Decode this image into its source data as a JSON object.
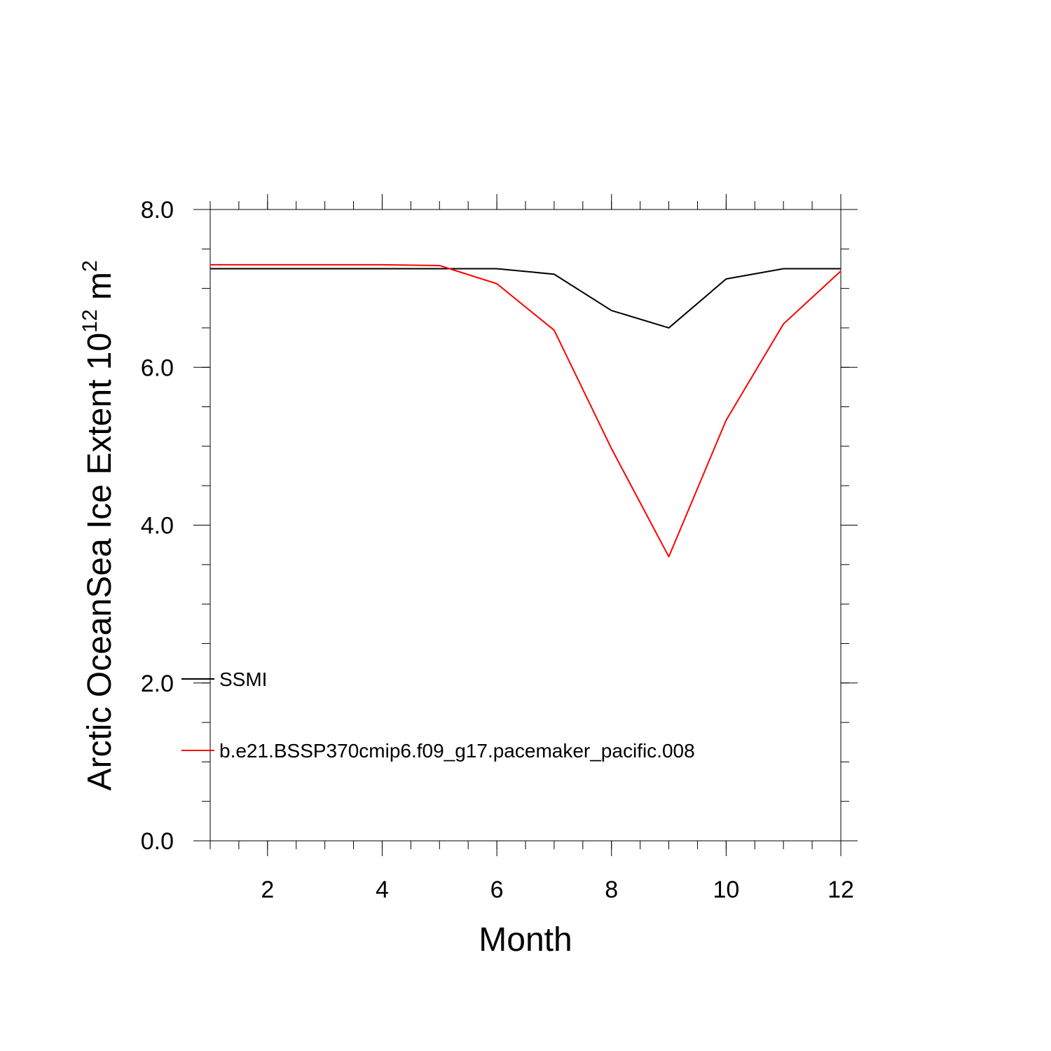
{
  "chart_data": {
    "type": "line",
    "title": "",
    "xlabel": "Month",
    "ylabel_main": "Arctic OceanSea Ice Extent 10",
    "ylabel_sup1": "12",
    "ylabel_mid": " m",
    "ylabel_sup2": "2",
    "xlim": [
      1,
      12
    ],
    "ylim": [
      0,
      8
    ],
    "x_ticks": [
      2,
      4,
      6,
      8,
      10,
      12
    ],
    "x_tick_labels": [
      "2",
      "4",
      "6",
      "8",
      "10",
      "12"
    ],
    "y_ticks": [
      0,
      2,
      4,
      6,
      8
    ],
    "y_tick_labels": [
      "0.0",
      "2.0",
      "4.0",
      "6.0",
      "8.0"
    ],
    "grid": false,
    "legend_position": "lower-left",
    "x": [
      1,
      2,
      3,
      4,
      5,
      6,
      7,
      8,
      9,
      10,
      11,
      12
    ],
    "series": [
      {
        "name": "SSMI",
        "color": "#000000",
        "values": [
          7.25,
          7.25,
          7.25,
          7.25,
          7.25,
          7.25,
          7.18,
          6.72,
          6.5,
          7.12,
          7.25,
          7.25
        ]
      },
      {
        "name": "b.e21.BSSP370cmip6.f09_g17.pacemaker_pacific.008",
        "color": "#ff0000",
        "values": [
          7.3,
          7.3,
          7.3,
          7.3,
          7.29,
          7.06,
          6.47,
          4.97,
          3.6,
          5.33,
          6.55,
          7.22
        ]
      }
    ]
  }
}
